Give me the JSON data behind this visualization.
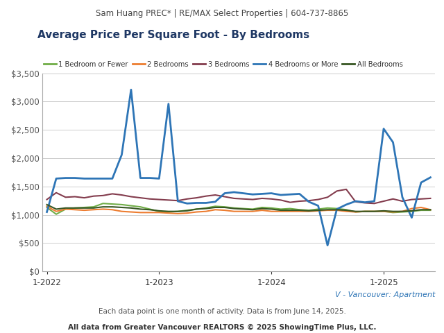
{
  "header": "Sam Huang PREC* | RE/MAX Select Properties | 604-737-8865",
  "title": "Average Price Per Square Foot - By Bedrooms",
  "footer1": "V - Vancouver: Apartment",
  "footer2": "Each data point is one month of activity. Data is from June 14, 2025.",
  "footer3": "All data from Greater Vancouver REALTORS © 2025 ShowingTime Plus, LLC.",
  "header_bg": "#e8e8e8",
  "plot_bg": "#ffffff",
  "fig_bg": "#ffffff",
  "title_color": "#1f3864",
  "header_color": "#444444",
  "footer1_color": "#2e75b6",
  "footer2_color": "#555555",
  "footer3_color": "#333333",
  "legend_labels": [
    "1 Bedroom or Fewer",
    "2 Bedrooms",
    "3 Bedrooms",
    "4 Bedrooms or More",
    "All Bedrooms"
  ],
  "legend_colors": [
    "#70ad47",
    "#ed7d31",
    "#833c4d",
    "#2e75b6",
    "#375623"
  ],
  "ylim": [
    0,
    3500
  ],
  "yticks": [
    0,
    500,
    1000,
    1500,
    2000,
    2500,
    3000,
    3500
  ],
  "xtick_positions": [
    0,
    12,
    24,
    36
  ],
  "xtick_labels": [
    "1-2022",
    "1-2023",
    "1-2024",
    "1-2025"
  ],
  "months_count": 42,
  "series_1bed": [
    1130,
    1010,
    1100,
    1120,
    1130,
    1140,
    1200,
    1190,
    1180,
    1160,
    1140,
    1100,
    1060,
    1050,
    1060,
    1080,
    1100,
    1120,
    1150,
    1140,
    1120,
    1110,
    1100,
    1130,
    1120,
    1100,
    1110,
    1090,
    1080,
    1100,
    1120,
    1110,
    1090,
    1050,
    1060,
    1060,
    1060,
    1040,
    1050,
    1060,
    1080,
    1080
  ],
  "series_2bed": [
    1150,
    1060,
    1100,
    1090,
    1080,
    1090,
    1100,
    1090,
    1060,
    1050,
    1040,
    1040,
    1040,
    1030,
    1020,
    1030,
    1050,
    1060,
    1090,
    1080,
    1060,
    1060,
    1060,
    1080,
    1060,
    1060,
    1060,
    1060,
    1060,
    1070,
    1080,
    1080,
    1060,
    1050,
    1060,
    1060,
    1060,
    1050,
    1060,
    1110,
    1130,
    1090
  ],
  "series_3bed": [
    1270,
    1390,
    1310,
    1320,
    1300,
    1330,
    1340,
    1370,
    1350,
    1320,
    1300,
    1280,
    1270,
    1260,
    1250,
    1280,
    1300,
    1330,
    1350,
    1320,
    1290,
    1280,
    1270,
    1290,
    1280,
    1260,
    1220,
    1240,
    1250,
    1270,
    1310,
    1420,
    1450,
    1230,
    1210,
    1200,
    1240,
    1280,
    1240,
    1270,
    1280,
    1290
  ],
  "series_4bed": [
    1050,
    1640,
    1650,
    1650,
    1640,
    1640,
    1640,
    1640,
    2060,
    3210,
    1650,
    1650,
    1640,
    2960,
    1240,
    1200,
    1210,
    1210,
    1230,
    1380,
    1400,
    1380,
    1360,
    1370,
    1380,
    1350,
    1360,
    1370,
    1230,
    1160,
    460,
    1100,
    1180,
    1240,
    1220,
    1240,
    2520,
    2280,
    1310,
    950,
    1570,
    1660
  ],
  "series_allbed": [
    1180,
    1100,
    1120,
    1120,
    1120,
    1120,
    1140,
    1140,
    1130,
    1120,
    1100,
    1090,
    1070,
    1060,
    1060,
    1070,
    1100,
    1110,
    1130,
    1130,
    1110,
    1100,
    1090,
    1110,
    1100,
    1080,
    1080,
    1080,
    1070,
    1080,
    1090,
    1090,
    1080,
    1060,
    1060,
    1060,
    1070,
    1060,
    1060,
    1070,
    1090,
    1090
  ]
}
